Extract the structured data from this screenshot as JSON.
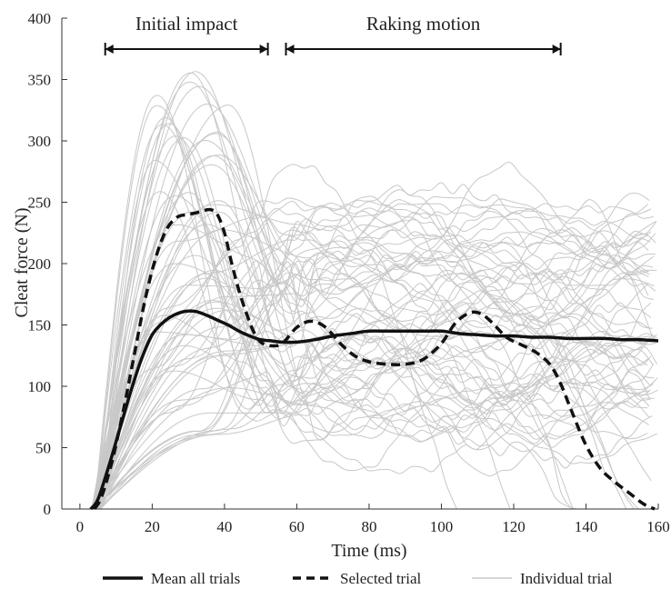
{
  "chart_data": {
    "type": "line",
    "xlabel": "Time (ms)",
    "ylabel": "Cleat force (N)",
    "xlim": [
      -5,
      160
    ],
    "ylim": [
      0,
      400
    ],
    "xticks": [
      0,
      20,
      40,
      60,
      80,
      100,
      120,
      140,
      160
    ],
    "yticks": [
      0,
      50,
      100,
      150,
      200,
      250,
      300,
      350,
      400
    ],
    "grid": false,
    "legend_position": "bottom",
    "annotations": [
      {
        "text": "Initial impact",
        "x_start": 7,
        "x_end": 52
      },
      {
        "text": "Raking motion",
        "x_start": 57,
        "x_end": 133
      }
    ],
    "series": [
      {
        "name": "Mean all trials",
        "style": "solid",
        "color": "#111111",
        "x": [
          3,
          5,
          8,
          11,
          14,
          17,
          20,
          23,
          26,
          29,
          32,
          35,
          38,
          41,
          44,
          47,
          50,
          53,
          56,
          60,
          65,
          70,
          75,
          80,
          85,
          90,
          95,
          100,
          105,
          110,
          115,
          120,
          125,
          130,
          135,
          140,
          145,
          150,
          155,
          160
        ],
        "y": [
          0,
          8,
          35,
          65,
          95,
          122,
          142,
          152,
          158,
          161,
          161,
          158,
          154,
          150,
          145,
          141,
          138,
          137,
          136,
          136,
          138,
          141,
          143,
          145,
          145,
          145,
          145,
          145,
          143,
          142,
          141,
          141,
          140,
          140,
          139,
          139,
          139,
          138,
          138,
          137
        ]
      },
      {
        "name": "Selected trial",
        "style": "dashed",
        "color": "#111111",
        "x": [
          4,
          6,
          9,
          12,
          15,
          18,
          21,
          24,
          27,
          30,
          33,
          36,
          38,
          40,
          42,
          44,
          46,
          48,
          50,
          53,
          56,
          60,
          64,
          68,
          72,
          76,
          80,
          85,
          90,
          95,
          100,
          104,
          108,
          111,
          114,
          118,
          122,
          126,
          130,
          133,
          136,
          140,
          144,
          148,
          152,
          156,
          159
        ],
        "y": [
          0,
          10,
          40,
          80,
          125,
          170,
          205,
          228,
          238,
          240,
          242,
          244,
          240,
          225,
          200,
          178,
          160,
          145,
          136,
          133,
          135,
          148,
          153,
          148,
          135,
          125,
          120,
          118,
          118,
          122,
          135,
          152,
          160,
          159,
          152,
          140,
          134,
          128,
          118,
          102,
          80,
          52,
          33,
          22,
          13,
          4,
          0
        ]
      },
      {
        "name": "Individual trial",
        "style": "solid",
        "color": "#c8c8c8"
      }
    ]
  },
  "legend": {
    "mean_label": "Mean all trials",
    "selected_label": "Selected trial",
    "individual_label": "Individual trial"
  },
  "colors": {
    "mean": "#111111",
    "selected": "#111111",
    "individual": "#c8c8c8",
    "axis": "#333333"
  }
}
